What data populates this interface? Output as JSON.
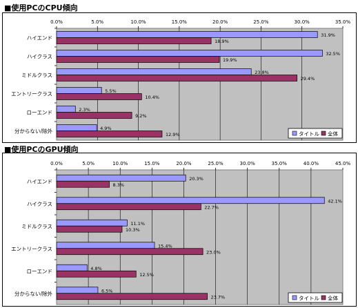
{
  "chart_data": [
    {
      "type": "bar",
      "orientation": "horizontal",
      "title": "■使用PCのCPU傾向",
      "categories": [
        "ハイエンド",
        "ハイクラス",
        "ミドルクラス",
        "エントリークラス",
        "ローエンド",
        "分からない/除外"
      ],
      "series": [
        {
          "name": "タイトル",
          "values": [
            31.9,
            32.5,
            23.8,
            5.5,
            2.3,
            4.9
          ],
          "labels": [
            "31.9%",
            "32.5%",
            "23.8%",
            "5.5%",
            "2.3%",
            "4.9%"
          ],
          "color": "#9999ff"
        },
        {
          "name": "全体",
          "values": [
            18.9,
            19.9,
            29.4,
            10.4,
            9.2,
            12.9
          ],
          "labels": [
            "18.9%",
            "19.9%",
            "29.4%",
            "10.4%",
            "9.2%",
            "12.9%"
          ],
          "color": "#993366"
        }
      ],
      "xlim": [
        0,
        35
      ],
      "xticks": [
        "0.0%",
        "5.0%",
        "10.0%",
        "15.0%",
        "20.0%",
        "25.0%",
        "30.0%",
        "35.0%"
      ],
      "grid": true,
      "legend": "bottom-right",
      "plot_background": "#c0c0c0"
    },
    {
      "type": "bar",
      "orientation": "horizontal",
      "title": "■使用PCのGPU傾向",
      "categories": [
        "ハイエンド",
        "ハイクラス",
        "ミドルクラス",
        "エントリークラス",
        "ローエンド",
        "分からない/除外"
      ],
      "series": [
        {
          "name": "タイトル",
          "values": [
            20.3,
            42.1,
            11.1,
            15.4,
            4.8,
            6.5
          ],
          "labels": [
            "20.3%",
            "42.1%",
            "11.1%",
            "15.4%",
            "4.8%",
            "6.5%"
          ],
          "color": "#9999ff"
        },
        {
          "name": "全体",
          "values": [
            8.3,
            22.7,
            10.3,
            23.0,
            12.5,
            23.7
          ],
          "labels": [
            "8.3%",
            "22.7%",
            "10.3%",
            "23.0%",
            "12.5%",
            "23.7%"
          ],
          "color": "#993366"
        }
      ],
      "xlim": [
        0,
        45
      ],
      "xticks": [
        "0.0%",
        "5.0%",
        "10.0%",
        "15.0%",
        "20.0%",
        "25.0%",
        "30.0%",
        "35.0%",
        "40.0%",
        "45.0%"
      ],
      "grid": true,
      "legend": "bottom-right",
      "plot_background": "#c0c0c0"
    }
  ]
}
